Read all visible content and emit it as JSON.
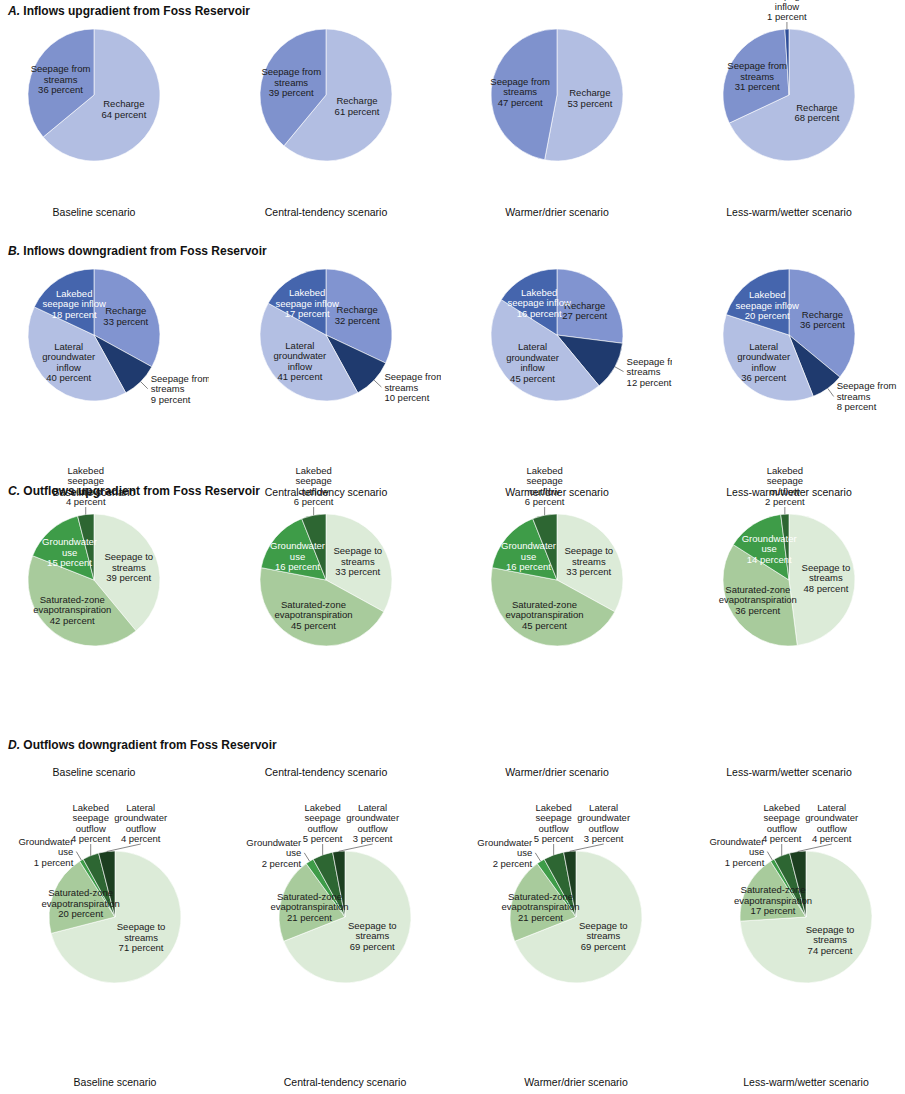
{
  "chart_data": [
    {
      "type": "pie",
      "subtitle": "A. Inflows upgradient from Foss Reservoir",
      "title": "Baseline scenario",
      "categories": [
        "Recharge",
        "Seepage from streams"
      ],
      "values": [
        64,
        36
      ],
      "value_labels": [
        "64 percent",
        "36 percent"
      ],
      "colors": [
        "#b2bee2",
        "#7f92cd"
      ],
      "data_labels": true
    },
    {
      "type": "pie",
      "subtitle": "A. Inflows upgradient from Foss Reservoir",
      "title": "Central-tendency scenario",
      "categories": [
        "Recharge",
        "Seepage from streams"
      ],
      "values": [
        61,
        39
      ],
      "value_labels": [
        "61 percent",
        "39 percent"
      ],
      "colors": [
        "#b2bee2",
        "#7f92cd"
      ],
      "data_labels": true
    },
    {
      "type": "pie",
      "subtitle": "A. Inflows upgradient from Foss Reservoir",
      "title": "Warmer/drier scenario",
      "categories": [
        "Recharge",
        "Seepage from streams"
      ],
      "values": [
        53,
        47
      ],
      "value_labels": [
        "53 percent",
        "47 percent"
      ],
      "colors": [
        "#b2bee2",
        "#7f92cd"
      ],
      "data_labels": true
    },
    {
      "type": "pie",
      "subtitle": "A. Inflows upgradient from Foss Reservoir",
      "title": "Less-warm/wetter scenario",
      "categories": [
        "Recharge",
        "Seepage from streams",
        "Lakebed seepage inflow"
      ],
      "values": [
        68,
        31,
        1
      ],
      "value_labels": [
        "68 percent",
        "31 percent",
        "1 percent"
      ],
      "colors": [
        "#b2bee2",
        "#7f92cd",
        "#2f4f99"
      ],
      "data_labels": true
    },
    {
      "type": "pie",
      "subtitle": "B. Inflows downgradient from Foss Reservoir",
      "title": "Baseline scenario",
      "categories": [
        "Recharge",
        "Seepage from streams",
        "Lateral groundwater inflow",
        "Lakebed seepage inflow"
      ],
      "values": [
        33,
        9,
        40,
        18
      ],
      "value_labels": [
        "33 percent",
        "9 percent",
        "40 percent",
        "18 percent"
      ],
      "colors": [
        "#8194d0",
        "#1f3a6e",
        "#b3bfe3",
        "#4565ad"
      ],
      "data_labels": true
    },
    {
      "type": "pie",
      "subtitle": "B. Inflows downgradient from Foss Reservoir",
      "title": "Central-tendency scenario",
      "categories": [
        "Recharge",
        "Seepage from streams",
        "Lateral groundwater inflow",
        "Lakebed seepage inflow"
      ],
      "values": [
        32,
        10,
        41,
        17
      ],
      "value_labels": [
        "32 percent",
        "10 percent",
        "41 percent",
        "17 percent"
      ],
      "colors": [
        "#8194d0",
        "#1f3a6e",
        "#b3bfe3",
        "#4565ad"
      ],
      "data_labels": true
    },
    {
      "type": "pie",
      "subtitle": "B. Inflows downgradient from Foss Reservoir",
      "title": "Warmer/drier scenario",
      "categories": [
        "Recharge",
        "Seepage from streams",
        "Lateral groundwater inflow",
        "Lakebed seepage inflow"
      ],
      "values": [
        27,
        12,
        45,
        16
      ],
      "value_labels": [
        "27 percent",
        "12 percent",
        "45 percent",
        "16 percent"
      ],
      "colors": [
        "#8194d0",
        "#1f3a6e",
        "#b3bfe3",
        "#4565ad"
      ],
      "data_labels": true
    },
    {
      "type": "pie",
      "subtitle": "B. Inflows downgradient from Foss Reservoir",
      "title": "Less-warm/wetter scenario",
      "categories": [
        "Recharge",
        "Seepage from streams",
        "Lateral groundwater inflow",
        "Lakebed seepage inflow"
      ],
      "values": [
        36,
        8,
        36,
        20
      ],
      "value_labels": [
        "36 percent",
        "8 percent",
        "36 percent",
        "20 percent"
      ],
      "colors": [
        "#8194d0",
        "#1f3a6e",
        "#b3bfe3",
        "#4565ad"
      ],
      "data_labels": true
    },
    {
      "type": "pie",
      "subtitle": "C. Outflows upgradient from Foss Reservoir",
      "title": "Baseline scenario",
      "categories": [
        "Seepage to streams",
        "Saturated-zone evapotranspiration",
        "Groundwater use",
        "Lakebed seepage outflow"
      ],
      "values": [
        39,
        42,
        15,
        4
      ],
      "value_labels": [
        "39 percent",
        "42 percent",
        "15 percent",
        "4 percent"
      ],
      "colors": [
        "#dcebd8",
        "#a8cb9c",
        "#3e9c48",
        "#2d6632"
      ],
      "data_labels": true
    },
    {
      "type": "pie",
      "subtitle": "C. Outflows upgradient from Foss Reservoir",
      "title": "Central-tendency scenario",
      "categories": [
        "Seepage to streams",
        "Saturated-zone evapotranspiration",
        "Groundwater use",
        "Lakebed seepage outflow"
      ],
      "values": [
        33,
        45,
        16,
        6
      ],
      "value_labels": [
        "33 percent",
        "45 percent",
        "16 percent",
        "6 percent"
      ],
      "colors": [
        "#dcebd8",
        "#a8cb9c",
        "#3e9c48",
        "#2d6632"
      ],
      "data_labels": true
    },
    {
      "type": "pie",
      "subtitle": "C. Outflows upgradient from Foss Reservoir",
      "title": "Warmer/drier scenario",
      "categories": [
        "Seepage to streams",
        "Saturated-zone evapotranspiration",
        "Groundwater use",
        "Lakebed seepage outflow"
      ],
      "values": [
        33,
        45,
        16,
        6
      ],
      "value_labels": [
        "33 percent",
        "45 percent",
        "16 percent",
        "6 percent"
      ],
      "colors": [
        "#dcebd8",
        "#a8cb9c",
        "#3e9c48",
        "#2d6632"
      ],
      "data_labels": true
    },
    {
      "type": "pie",
      "subtitle": "C. Outflows upgradient from Foss Reservoir",
      "title": "Less-warm/wetter scenario",
      "categories": [
        "Seepage to streams",
        "Saturated-zone evapotranspiration",
        "Groundwater use",
        "Lakebed seepage outflow"
      ],
      "values": [
        48,
        36,
        14,
        2
      ],
      "value_labels": [
        "48 percent",
        "36 percent",
        "14 percent",
        "2 percent"
      ],
      "colors": [
        "#dcebd8",
        "#a8cb9c",
        "#3e9c48",
        "#2d6632"
      ],
      "data_labels": true
    },
    {
      "type": "pie",
      "subtitle": "D. Outflows downgradient from Foss Reservoir",
      "title": "Baseline scenario",
      "categories": [
        "Seepage to streams",
        "Saturated-zone evapotranspiration",
        "Groundwater use",
        "Lakebed seepage outflow",
        "Lateral groundwater outflow"
      ],
      "values": [
        71,
        20,
        1,
        4,
        4
      ],
      "value_labels": [
        "71 percent",
        "20 percent",
        "1 percent",
        "4 percent",
        "4 percent"
      ],
      "colors": [
        "#dcebd8",
        "#a8cb9c",
        "#3e9c48",
        "#2d6632",
        "#1c3f20"
      ],
      "data_labels": true
    },
    {
      "type": "pie",
      "subtitle": "D. Outflows downgradient from Foss Reservoir",
      "title": "Central-tendency scenario",
      "categories": [
        "Seepage to streams",
        "Saturated-zone evapotranspiration",
        "Groundwater use",
        "Lakebed seepage outflow",
        "Lateral groundwater outflow"
      ],
      "values": [
        69,
        21,
        2,
        5,
        3
      ],
      "value_labels": [
        "69 percent",
        "21 percent",
        "2 percent",
        "5 percent",
        "3 percent"
      ],
      "colors": [
        "#dcebd8",
        "#a8cb9c",
        "#3e9c48",
        "#2d6632",
        "#1c3f20"
      ],
      "data_labels": true
    },
    {
      "type": "pie",
      "subtitle": "D. Outflows downgradient from Foss Reservoir",
      "title": "Warmer/drier scenario",
      "categories": [
        "Seepage to streams",
        "Saturated-zone evapotranspiration",
        "Groundwater use",
        "Lakebed seepage outflow",
        "Lateral groundwater outflow"
      ],
      "values": [
        69,
        21,
        2,
        5,
        3
      ],
      "value_labels": [
        "69 percent",
        "21 percent",
        "2 percent",
        "5 percent",
        "3 percent"
      ],
      "colors": [
        "#dcebd8",
        "#a8cb9c",
        "#3e9c48",
        "#2d6632",
        "#1c3f20"
      ],
      "data_labels": true
    },
    {
      "type": "pie",
      "subtitle": "D. Outflows downgradient from Foss Reservoir",
      "title": "Less-warm/wetter scenario",
      "categories": [
        "Seepage to streams",
        "Saturated-zone evapotranspiration",
        "Groundwater use",
        "Lakebed seepage outflow",
        "Lateral groundwater outflow"
      ],
      "values": [
        74,
        17,
        1,
        4,
        4
      ],
      "value_labels": [
        "74 percent",
        "17 percent",
        "1 percent",
        "4 percent",
        "4 percent"
      ],
      "colors": [
        "#dcebd8",
        "#a8cb9c",
        "#3e9c48",
        "#2d6632",
        "#1c3f20"
      ],
      "data_labels": true
    }
  ]
}
